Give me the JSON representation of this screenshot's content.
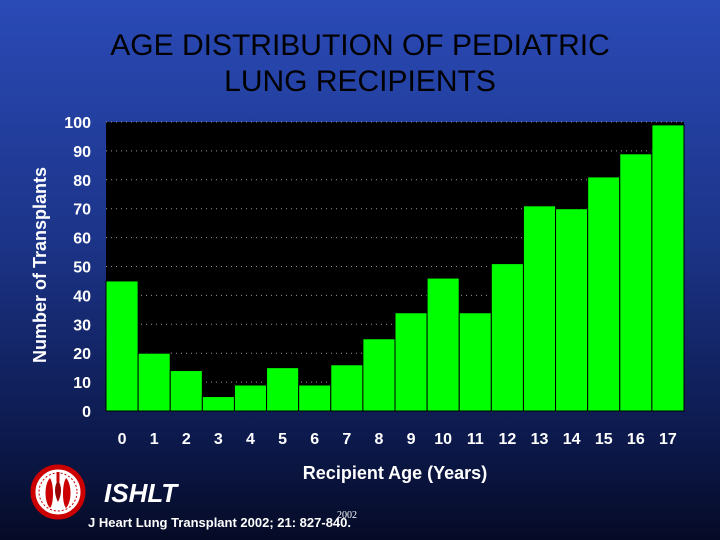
{
  "title_lines": [
    "AGE DISTRIBUTION OF PEDIATRIC",
    "LUNG RECIPIENTS"
  ],
  "org_name": "ISHLT",
  "year": "2002",
  "citation": "J Heart Lung Transplant 2002; 21: 827-840.",
  "colors": {
    "bar": "#00ff00",
    "plot_background": "#000000",
    "axis_text": "#ffffff",
    "title": "#000000"
  },
  "chart_data": {
    "type": "bar",
    "title": "AGE DISTRIBUTION OF PEDIATRIC LUNG RECIPIENTS",
    "xlabel": "Recipient Age (Years)",
    "ylabel": "Number of Transplants",
    "categories": [
      "0",
      "1",
      "2",
      "3",
      "4",
      "5",
      "6",
      "7",
      "8",
      "9",
      "10",
      "11",
      "12",
      "13",
      "14",
      "15",
      "16",
      "17"
    ],
    "values": [
      45,
      20,
      14,
      5,
      9,
      15,
      9,
      16,
      25,
      34,
      46,
      34,
      51,
      71,
      70,
      81,
      89,
      99
    ],
    "ylim": [
      0,
      100
    ],
    "yticks": [
      0,
      10,
      20,
      30,
      40,
      50,
      60,
      70,
      80,
      90,
      100
    ],
    "grid": true
  }
}
